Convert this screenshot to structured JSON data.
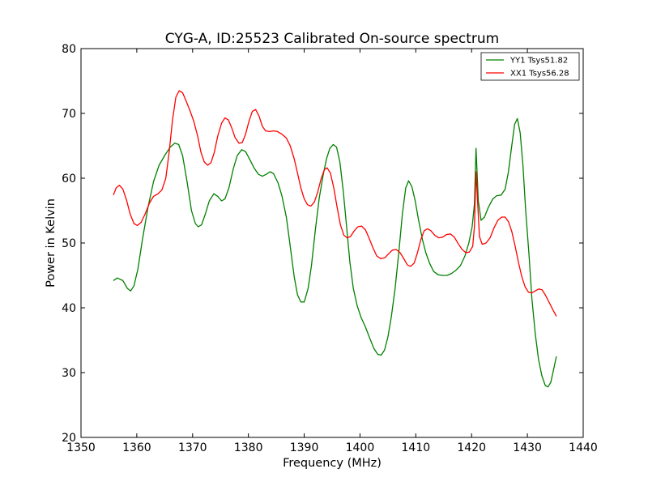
{
  "chart_data": {
    "type": "line",
    "title": "CYG-A, ID:25523 Calibrated On-source spectrum",
    "xlabel": "Frequency (MHz)",
    "ylabel": "Power in Kelvin",
    "xlim": [
      1350,
      1440
    ],
    "ylim": [
      20,
      80
    ],
    "xticks": [
      "1350",
      "1360",
      "1370",
      "1380",
      "1390",
      "1400",
      "1410",
      "1420",
      "1430",
      "1440"
    ],
    "yticks": [
      "20",
      "30",
      "40",
      "50",
      "60",
      "70",
      "80"
    ],
    "grid": false,
    "legend_position": "top-right",
    "series": [
      {
        "name": "YY1 Tsys51.82",
        "color": "#008000",
        "points": [
          [
            1355.8,
            44.2
          ],
          [
            1356.5,
            44.6
          ],
          [
            1357.5,
            44.2
          ],
          [
            1358.3,
            43.0
          ],
          [
            1358.9,
            42.6
          ],
          [
            1359.5,
            43.4
          ],
          [
            1360.2,
            46.0
          ],
          [
            1361.0,
            50.5
          ],
          [
            1362.0,
            55.5
          ],
          [
            1363.0,
            59.5
          ],
          [
            1364.0,
            62.0
          ],
          [
            1365.0,
            63.5
          ],
          [
            1366.0,
            64.8
          ],
          [
            1366.8,
            65.4
          ],
          [
            1367.5,
            65.2
          ],
          [
            1368.2,
            63.5
          ],
          [
            1369.0,
            59.5
          ],
          [
            1369.8,
            55.0
          ],
          [
            1370.5,
            53.0
          ],
          [
            1371.0,
            52.5
          ],
          [
            1371.6,
            52.8
          ],
          [
            1372.3,
            54.5
          ],
          [
            1373.0,
            56.5
          ],
          [
            1373.8,
            57.6
          ],
          [
            1374.5,
            57.2
          ],
          [
            1375.2,
            56.5
          ],
          [
            1375.8,
            56.8
          ],
          [
            1376.5,
            58.5
          ],
          [
            1377.3,
            61.5
          ],
          [
            1378.0,
            63.5
          ],
          [
            1378.8,
            64.4
          ],
          [
            1379.5,
            64.1
          ],
          [
            1380.3,
            62.8
          ],
          [
            1381.0,
            61.6
          ],
          [
            1381.8,
            60.6
          ],
          [
            1382.5,
            60.3
          ],
          [
            1383.2,
            60.6
          ],
          [
            1383.9,
            61.0
          ],
          [
            1384.5,
            60.7
          ],
          [
            1385.3,
            59.3
          ],
          [
            1386.0,
            57.3
          ],
          [
            1386.8,
            54.0
          ],
          [
            1387.5,
            49.5
          ],
          [
            1388.2,
            44.8
          ],
          [
            1388.8,
            42.0
          ],
          [
            1389.4,
            40.9
          ],
          [
            1390.0,
            40.9
          ],
          [
            1390.7,
            43.0
          ],
          [
            1391.3,
            46.5
          ],
          [
            1392.0,
            52.0
          ],
          [
            1392.7,
            57.0
          ],
          [
            1393.4,
            60.5
          ],
          [
            1394.0,
            63.0
          ],
          [
            1394.6,
            64.6
          ],
          [
            1395.2,
            65.2
          ],
          [
            1395.8,
            64.8
          ],
          [
            1396.4,
            62.5
          ],
          [
            1397.0,
            58.0
          ],
          [
            1397.6,
            52.5
          ],
          [
            1398.2,
            47.0
          ],
          [
            1398.8,
            43.0
          ],
          [
            1399.5,
            40.3
          ],
          [
            1400.2,
            38.5
          ],
          [
            1401.0,
            37.0
          ],
          [
            1401.8,
            35.2
          ],
          [
            1402.5,
            33.7
          ],
          [
            1403.2,
            32.8
          ],
          [
            1403.8,
            32.7
          ],
          [
            1404.4,
            33.5
          ],
          [
            1405.0,
            35.5
          ],
          [
            1405.6,
            38.5
          ],
          [
            1406.3,
            43.0
          ],
          [
            1407.0,
            49.0
          ],
          [
            1407.6,
            54.5
          ],
          [
            1408.2,
            58.5
          ],
          [
            1408.7,
            59.6
          ],
          [
            1409.3,
            58.7
          ],
          [
            1409.9,
            56.5
          ],
          [
            1410.5,
            53.5
          ],
          [
            1411.2,
            50.5
          ],
          [
            1411.8,
            48.5
          ],
          [
            1412.5,
            46.8
          ],
          [
            1413.2,
            45.6
          ],
          [
            1414.0,
            45.1
          ],
          [
            1414.8,
            45.0
          ],
          [
            1415.6,
            45.0
          ],
          [
            1416.4,
            45.3
          ],
          [
            1417.2,
            45.8
          ],
          [
            1418.0,
            46.5
          ],
          [
            1418.8,
            48.0
          ],
          [
            1419.5,
            50.0
          ],
          [
            1420.1,
            52.5
          ],
          [
            1420.5,
            56.0
          ],
          [
            1420.8,
            64.6
          ],
          [
            1421.2,
            56.5
          ],
          [
            1421.7,
            53.5
          ],
          [
            1422.3,
            54.0
          ],
          [
            1423.0,
            55.5
          ],
          [
            1423.8,
            56.8
          ],
          [
            1424.5,
            57.3
          ],
          [
            1425.3,
            57.4
          ],
          [
            1426.0,
            58.3
          ],
          [
            1426.6,
            61.0
          ],
          [
            1427.2,
            65.0
          ],
          [
            1427.7,
            68.3
          ],
          [
            1428.2,
            69.2
          ],
          [
            1428.7,
            67.0
          ],
          [
            1429.2,
            62.0
          ],
          [
            1429.7,
            55.0
          ],
          [
            1430.3,
            48.0
          ],
          [
            1430.8,
            41.5
          ],
          [
            1431.4,
            36.0
          ],
          [
            1432.0,
            32.0
          ],
          [
            1432.6,
            29.5
          ],
          [
            1433.2,
            28.0
          ],
          [
            1433.7,
            27.8
          ],
          [
            1434.2,
            28.5
          ],
          [
            1434.7,
            30.5
          ],
          [
            1435.2,
            32.5
          ]
        ]
      },
      {
        "name": "XX1 Tsys56.28",
        "color": "#ff0000",
        "points": [
          [
            1355.8,
            57.4
          ],
          [
            1356.3,
            58.5
          ],
          [
            1356.9,
            58.9
          ],
          [
            1357.5,
            58.3
          ],
          [
            1358.2,
            56.5
          ],
          [
            1358.8,
            54.5
          ],
          [
            1359.5,
            53.0
          ],
          [
            1360.1,
            52.7
          ],
          [
            1360.8,
            53.2
          ],
          [
            1361.5,
            54.5
          ],
          [
            1362.3,
            56.2
          ],
          [
            1363.0,
            57.2
          ],
          [
            1363.8,
            57.6
          ],
          [
            1364.5,
            58.2
          ],
          [
            1365.2,
            60.0
          ],
          [
            1365.8,
            64.0
          ],
          [
            1366.4,
            69.0
          ],
          [
            1367.0,
            72.5
          ],
          [
            1367.6,
            73.5
          ],
          [
            1368.2,
            73.2
          ],
          [
            1368.8,
            72.0
          ],
          [
            1369.5,
            70.5
          ],
          [
            1370.2,
            68.8
          ],
          [
            1370.9,
            66.5
          ],
          [
            1371.5,
            64.0
          ],
          [
            1372.1,
            62.5
          ],
          [
            1372.7,
            62.0
          ],
          [
            1373.3,
            62.4
          ],
          [
            1373.9,
            64.0
          ],
          [
            1374.5,
            66.5
          ],
          [
            1375.2,
            68.5
          ],
          [
            1375.8,
            69.3
          ],
          [
            1376.4,
            69.0
          ],
          [
            1377.0,
            67.8
          ],
          [
            1377.6,
            66.3
          ],
          [
            1378.3,
            65.4
          ],
          [
            1378.9,
            65.5
          ],
          [
            1379.5,
            66.8
          ],
          [
            1380.1,
            68.8
          ],
          [
            1380.7,
            70.3
          ],
          [
            1381.3,
            70.6
          ],
          [
            1381.9,
            69.6
          ],
          [
            1382.5,
            68.0
          ],
          [
            1383.1,
            67.3
          ],
          [
            1383.8,
            67.2
          ],
          [
            1384.5,
            67.3
          ],
          [
            1385.2,
            67.2
          ],
          [
            1386.0,
            66.8
          ],
          [
            1386.8,
            66.2
          ],
          [
            1387.5,
            65.0
          ],
          [
            1388.2,
            63.0
          ],
          [
            1388.8,
            60.8
          ],
          [
            1389.4,
            58.5
          ],
          [
            1390.0,
            56.8
          ],
          [
            1390.6,
            55.9
          ],
          [
            1391.2,
            55.7
          ],
          [
            1391.8,
            56.3
          ],
          [
            1392.4,
            57.8
          ],
          [
            1393.0,
            59.8
          ],
          [
            1393.6,
            61.3
          ],
          [
            1394.1,
            61.6
          ],
          [
            1394.7,
            60.8
          ],
          [
            1395.3,
            58.5
          ],
          [
            1395.9,
            55.5
          ],
          [
            1396.5,
            52.8
          ],
          [
            1397.1,
            51.2
          ],
          [
            1397.7,
            50.8
          ],
          [
            1398.3,
            51.0
          ],
          [
            1398.9,
            51.8
          ],
          [
            1399.6,
            52.5
          ],
          [
            1400.3,
            52.6
          ],
          [
            1401.0,
            52.0
          ],
          [
            1401.6,
            50.8
          ],
          [
            1402.3,
            49.3
          ],
          [
            1403.0,
            48.0
          ],
          [
            1403.7,
            47.6
          ],
          [
            1404.4,
            47.7
          ],
          [
            1405.1,
            48.3
          ],
          [
            1405.8,
            48.9
          ],
          [
            1406.5,
            49.0
          ],
          [
            1407.2,
            48.5
          ],
          [
            1407.9,
            47.5
          ],
          [
            1408.5,
            46.6
          ],
          [
            1409.1,
            46.4
          ],
          [
            1409.7,
            46.9
          ],
          [
            1410.3,
            48.5
          ],
          [
            1410.9,
            50.5
          ],
          [
            1411.5,
            51.9
          ],
          [
            1412.1,
            52.2
          ],
          [
            1412.7,
            51.9
          ],
          [
            1413.4,
            51.2
          ],
          [
            1414.1,
            50.8
          ],
          [
            1414.8,
            50.9
          ],
          [
            1415.5,
            51.3
          ],
          [
            1416.2,
            51.4
          ],
          [
            1416.9,
            50.9
          ],
          [
            1417.6,
            49.9
          ],
          [
            1418.3,
            49.0
          ],
          [
            1419.0,
            48.5
          ],
          [
            1419.6,
            48.6
          ],
          [
            1420.2,
            49.5
          ],
          [
            1420.5,
            52.5
          ],
          [
            1420.8,
            61.0
          ],
          [
            1421.1,
            56.0
          ],
          [
            1421.4,
            51.0
          ],
          [
            1421.9,
            49.8
          ],
          [
            1422.6,
            50.0
          ],
          [
            1423.3,
            50.8
          ],
          [
            1424.0,
            52.3
          ],
          [
            1424.7,
            53.5
          ],
          [
            1425.4,
            54.0
          ],
          [
            1426.0,
            54.0
          ],
          [
            1426.6,
            53.3
          ],
          [
            1427.2,
            51.8
          ],
          [
            1427.8,
            49.5
          ],
          [
            1428.4,
            47.0
          ],
          [
            1429.0,
            44.8
          ],
          [
            1429.6,
            43.2
          ],
          [
            1430.2,
            42.4
          ],
          [
            1430.8,
            42.3
          ],
          [
            1431.4,
            42.6
          ],
          [
            1432.0,
            42.9
          ],
          [
            1432.6,
            42.8
          ],
          [
            1433.2,
            42.0
          ],
          [
            1433.8,
            41.0
          ],
          [
            1434.5,
            39.8
          ],
          [
            1435.2,
            38.7
          ]
        ]
      }
    ]
  }
}
